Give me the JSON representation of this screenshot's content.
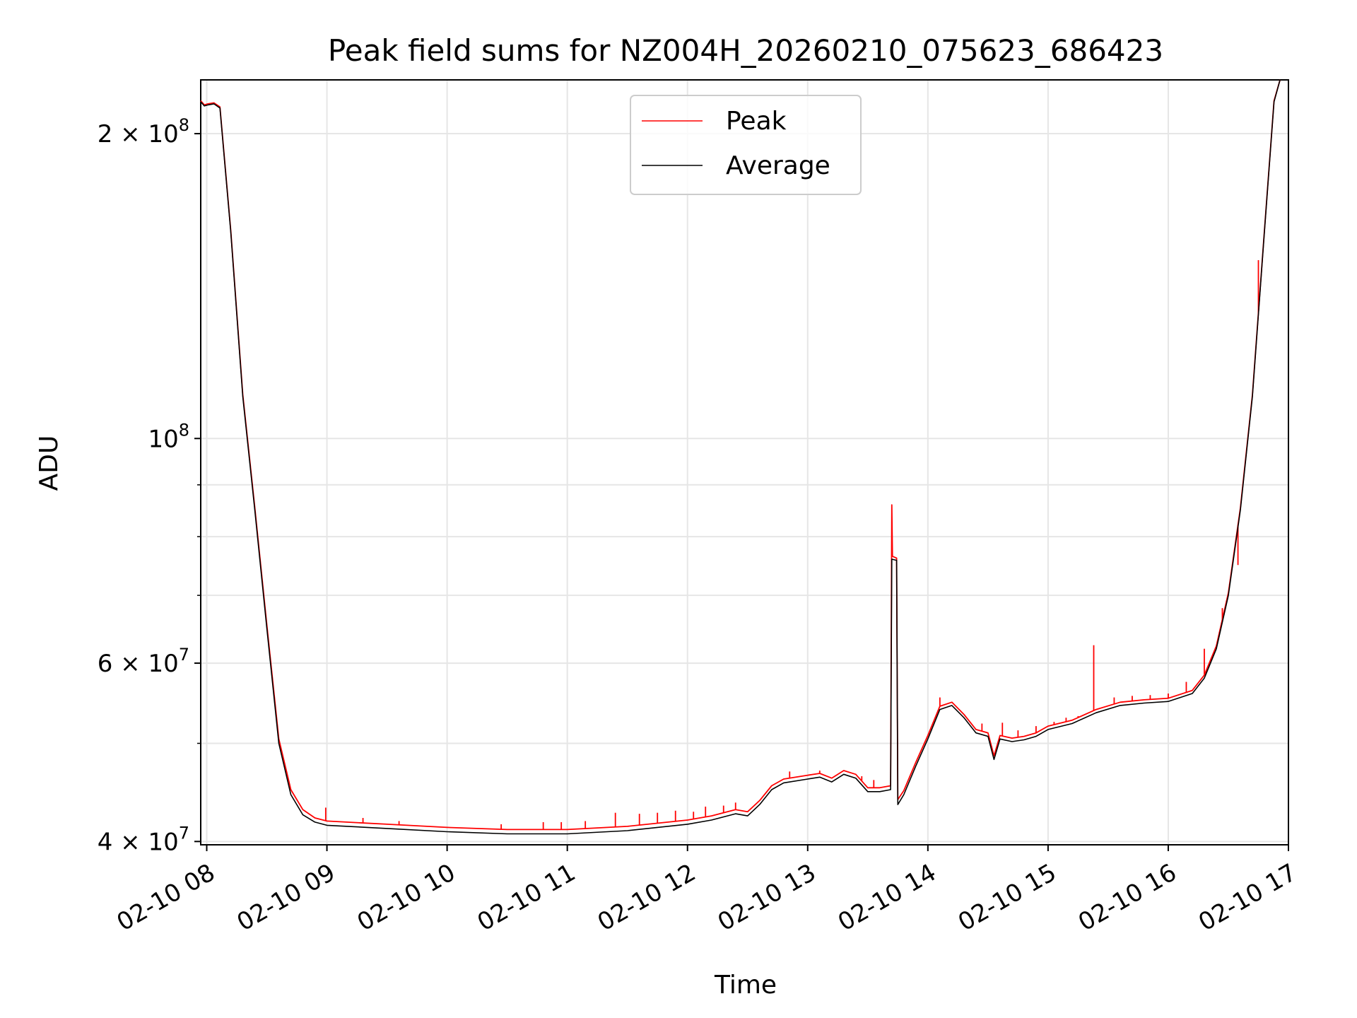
{
  "chart_data": {
    "type": "line",
    "title": "Peak field sums for NZ004H_20260210_075623_686423",
    "xlabel": "Time",
    "ylabel": "ADU",
    "yscale": "log",
    "grid": true,
    "xlim_hours": [
      7.95,
      17.0
    ],
    "ylim": [
      39700000,
      226000000
    ],
    "x_ticks": [
      {
        "hour": 8,
        "label": "02-10 08"
      },
      {
        "hour": 9,
        "label": "02-10 09"
      },
      {
        "hour": 10,
        "label": "02-10 10"
      },
      {
        "hour": 11,
        "label": "02-10 11"
      },
      {
        "hour": 12,
        "label": "02-10 12"
      },
      {
        "hour": 13,
        "label": "02-10 13"
      },
      {
        "hour": 14,
        "label": "02-10 14"
      },
      {
        "hour": 15,
        "label": "02-10 15"
      },
      {
        "hour": 16,
        "label": "02-10 16"
      },
      {
        "hour": 17,
        "label": "02-10 17"
      }
    ],
    "y_ticks": [
      {
        "value": 40000000,
        "label": "4 × 10",
        "exp": "7"
      },
      {
        "value": 60000000,
        "label": "6 × 10",
        "exp": "7"
      },
      {
        "value": 100000000,
        "label": "10",
        "exp": "8"
      },
      {
        "value": 200000000,
        "label": "2 × 10",
        "exp": "8"
      }
    ],
    "y_minor_ticks": [
      50000000,
      70000000,
      80000000,
      90000000
    ],
    "legend": {
      "position": "upper center",
      "entries": [
        {
          "name": "Peak",
          "color": "#ff0000"
        },
        {
          "name": "Average",
          "color": "#000000"
        }
      ]
    },
    "series": [
      {
        "name": "Average",
        "color": "#000000",
        "points": [
          [
            7.95,
            215000000
          ],
          [
            7.98,
            213000000
          ],
          [
            8.01,
            213500000
          ],
          [
            8.06,
            214000000
          ],
          [
            8.11,
            212000000
          ],
          [
            8.2,
            160000000
          ],
          [
            8.3,
            110000000
          ],
          [
            8.4,
            85000000
          ],
          [
            8.5,
            65000000
          ],
          [
            8.6,
            50000000
          ],
          [
            8.7,
            44500000
          ],
          [
            8.8,
            42500000
          ],
          [
            8.9,
            41800000
          ],
          [
            9.0,
            41500000
          ],
          [
            9.5,
            41200000
          ],
          [
            10.0,
            40900000
          ],
          [
            10.5,
            40700000
          ],
          [
            11.0,
            40700000
          ],
          [
            11.5,
            41000000
          ],
          [
            12.0,
            41600000
          ],
          [
            12.2,
            42000000
          ],
          [
            12.4,
            42600000
          ],
          [
            12.5,
            42400000
          ],
          [
            12.6,
            43500000
          ],
          [
            12.7,
            45000000
          ],
          [
            12.8,
            45700000
          ],
          [
            13.0,
            46100000
          ],
          [
            13.1,
            46300000
          ],
          [
            13.2,
            45800000
          ],
          [
            13.3,
            46600000
          ],
          [
            13.4,
            46200000
          ],
          [
            13.5,
            44800000
          ],
          [
            13.6,
            44800000
          ],
          [
            13.69,
            45000000
          ],
          [
            13.7,
            76000000
          ],
          [
            13.74,
            75800000
          ],
          [
            13.75,
            43500000
          ],
          [
            13.8,
            44500000
          ],
          [
            13.9,
            47500000
          ],
          [
            14.0,
            50500000
          ],
          [
            14.1,
            54000000
          ],
          [
            14.2,
            54500000
          ],
          [
            14.3,
            53000000
          ],
          [
            14.4,
            51200000
          ],
          [
            14.5,
            50800000
          ],
          [
            14.55,
            48200000
          ],
          [
            14.6,
            50500000
          ],
          [
            14.7,
            50200000
          ],
          [
            14.8,
            50400000
          ],
          [
            14.9,
            50800000
          ],
          [
            15.0,
            51600000
          ],
          [
            15.2,
            52300000
          ],
          [
            15.4,
            53600000
          ],
          [
            15.6,
            54500000
          ],
          [
            15.8,
            54800000
          ],
          [
            16.0,
            55000000
          ],
          [
            16.2,
            56000000
          ],
          [
            16.3,
            58000000
          ],
          [
            16.4,
            62000000
          ],
          [
            16.5,
            70000000
          ],
          [
            16.6,
            85000000
          ],
          [
            16.7,
            110000000
          ],
          [
            16.8,
            160000000
          ],
          [
            16.88,
            215000000
          ],
          [
            16.93,
            226000000
          ]
        ]
      },
      {
        "name": "Peak",
        "color": "#ff0000",
        "points": [
          [
            7.95,
            215500000
          ],
          [
            7.98,
            213500000
          ],
          [
            8.01,
            214000000
          ],
          [
            8.06,
            214500000
          ],
          [
            8.11,
            212500000
          ],
          [
            8.2,
            160500000
          ],
          [
            8.3,
            110500000
          ],
          [
            8.4,
            85500000
          ],
          [
            8.5,
            65500000
          ],
          [
            8.6,
            50500000
          ],
          [
            8.7,
            45000000
          ],
          [
            8.8,
            43000000
          ],
          [
            8.9,
            42200000
          ],
          [
            9.0,
            41900000
          ],
          [
            9.5,
            41600000
          ],
          [
            10.0,
            41300000
          ],
          [
            10.5,
            41100000
          ],
          [
            11.0,
            41100000
          ],
          [
            11.5,
            41400000
          ],
          [
            12.0,
            42000000
          ],
          [
            12.2,
            42400000
          ],
          [
            12.4,
            43000000
          ],
          [
            12.5,
            42800000
          ],
          [
            12.6,
            43900000
          ],
          [
            12.7,
            45400000
          ],
          [
            12.8,
            46100000
          ],
          [
            13.0,
            46500000
          ],
          [
            13.1,
            46700000
          ],
          [
            13.2,
            46200000
          ],
          [
            13.3,
            47000000
          ],
          [
            13.4,
            46600000
          ],
          [
            13.5,
            45200000
          ],
          [
            13.6,
            45200000
          ],
          [
            13.69,
            45400000
          ],
          [
            13.7,
            86000000
          ],
          [
            13.705,
            76500000
          ],
          [
            13.74,
            76200000
          ],
          [
            13.75,
            44000000
          ],
          [
            13.8,
            44900000
          ],
          [
            13.9,
            47900000
          ],
          [
            14.0,
            50900000
          ],
          [
            14.1,
            54400000
          ],
          [
            14.2,
            54900000
          ],
          [
            14.3,
            53400000
          ],
          [
            14.4,
            51600000
          ],
          [
            14.5,
            51200000
          ],
          [
            14.55,
            48600000
          ],
          [
            14.6,
            50900000
          ],
          [
            14.7,
            50600000
          ],
          [
            14.8,
            50800000
          ],
          [
            14.9,
            51200000
          ],
          [
            15.0,
            52000000
          ],
          [
            15.2,
            52700000
          ],
          [
            15.4,
            54000000
          ],
          [
            15.6,
            54900000
          ],
          [
            15.8,
            55200000
          ],
          [
            16.0,
            55400000
          ],
          [
            16.2,
            56400000
          ],
          [
            16.3,
            58400000
          ],
          [
            16.4,
            62400000
          ],
          [
            16.5,
            70400000
          ],
          [
            16.6,
            85400000
          ],
          [
            16.7,
            110400000
          ],
          [
            16.8,
            160400000
          ],
          [
            16.88,
            215500000
          ],
          [
            16.93,
            226000000
          ]
        ],
        "spikes": [
          [
            8.99,
            43200000
          ],
          [
            9.3,
            42200000
          ],
          [
            9.6,
            41900000
          ],
          [
            10.45,
            41600000
          ],
          [
            10.8,
            41800000
          ],
          [
            10.95,
            41800000
          ],
          [
            11.15,
            41900000
          ],
          [
            11.4,
            42700000
          ],
          [
            11.6,
            42600000
          ],
          [
            11.75,
            42700000
          ],
          [
            11.9,
            42900000
          ],
          [
            12.05,
            42800000
          ],
          [
            12.15,
            43300000
          ],
          [
            12.3,
            43400000
          ],
          [
            12.4,
            43700000
          ],
          [
            12.85,
            46900000
          ],
          [
            13.1,
            47000000
          ],
          [
            13.45,
            46400000
          ],
          [
            13.55,
            46000000
          ],
          [
            14.1,
            55500000
          ],
          [
            14.45,
            52300000
          ],
          [
            14.62,
            52400000
          ],
          [
            14.75,
            51500000
          ],
          [
            14.9,
            52000000
          ],
          [
            15.05,
            52500000
          ],
          [
            15.15,
            53000000
          ],
          [
            15.25,
            53200000
          ],
          [
            15.38,
            62500000
          ],
          [
            15.55,
            55500000
          ],
          [
            15.7,
            55700000
          ],
          [
            15.85,
            55800000
          ],
          [
            16.0,
            56000000
          ],
          [
            16.15,
            57500000
          ],
          [
            16.3,
            62000000
          ],
          [
            16.45,
            68000000
          ],
          [
            16.58,
            75000000
          ],
          [
            16.75,
            150000000
          ]
        ]
      }
    ]
  }
}
